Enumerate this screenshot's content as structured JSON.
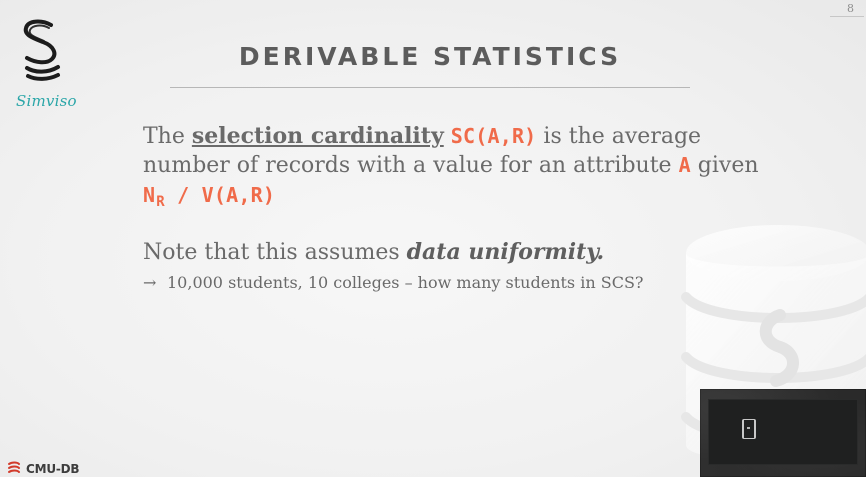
{
  "page": {
    "number": "8"
  },
  "logo": {
    "text": "Simviso",
    "icon": "simviso-logo-icon",
    "color": "#2aa6a8"
  },
  "slide": {
    "title": "DERIVABLE STATISTICS",
    "para1": {
      "t1": "The ",
      "term": "selection cardinality",
      "t2": " ",
      "code1": "SC(A,R)",
      "t3": " is the average number of records with a value for an attribute ",
      "code2": "A",
      "t4": " given ",
      "code3a": "N",
      "code3sub": "R",
      "code3b": " / V(A,R)"
    },
    "para2": {
      "t1": "Note that this assumes ",
      "emph": "data uniformity."
    },
    "note": {
      "arrow": "→",
      "text": "10,000 students, 10 colleges – how many students in SCS?"
    }
  },
  "footer": {
    "brand": "CMU-DB",
    "icon": "cmu-db-icon"
  },
  "colors": {
    "accent": "#f06b4a",
    "title": "#5c5c5c",
    "body": "#6a6a6a"
  }
}
